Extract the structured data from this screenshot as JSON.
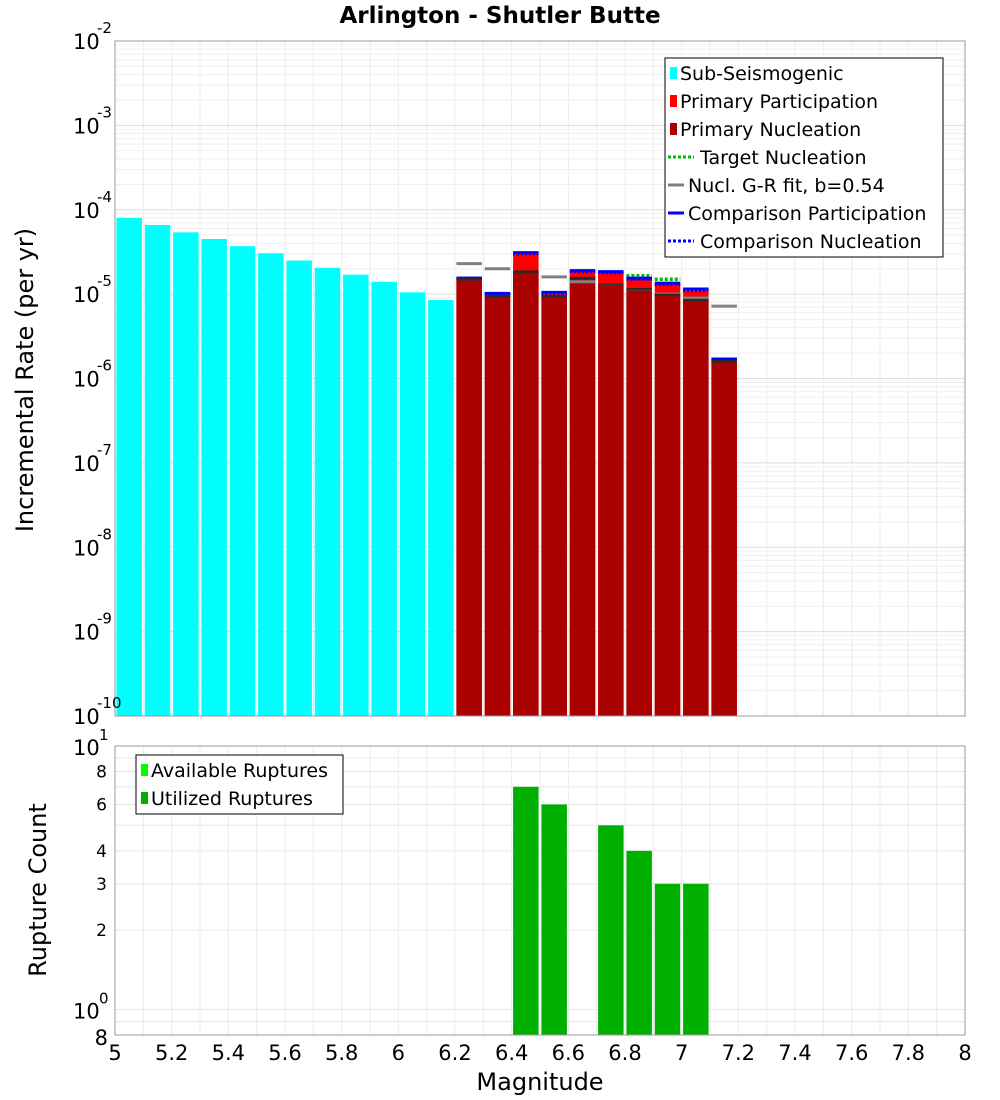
{
  "chart_data": [
    {
      "type": "bar",
      "title": "Arlington - Shutler Butte",
      "xlabel": "Magnitude",
      "ylabel": "Incremental Rate (per yr)",
      "yscale": "log",
      "xlim": [
        5,
        8
      ],
      "ylim": [
        1e-10,
        0.01
      ],
      "x_ticks": [
        "5",
        "5.2",
        "5.4",
        "5.6",
        "5.8",
        "6",
        "6.2",
        "6.4",
        "6.6",
        "6.8",
        "7",
        "7.2",
        "7.4",
        "7.6",
        "7.8",
        "8"
      ],
      "y_ticks": [
        {
          "base": "10",
          "exp": "-10"
        },
        {
          "base": "10",
          "exp": "-9"
        },
        {
          "base": "10",
          "exp": "-8"
        },
        {
          "base": "10",
          "exp": "-7"
        },
        {
          "base": "10",
          "exp": "-6"
        },
        {
          "base": "10",
          "exp": "-5"
        },
        {
          "base": "10",
          "exp": "-4"
        },
        {
          "base": "10",
          "exp": "-3"
        },
        {
          "base": "10",
          "exp": "-2"
        }
      ],
      "legend": {
        "position": "top-right",
        "entries": [
          {
            "label": "Sub-Seismogenic",
            "style": "bar",
            "color": "#00ffff"
          },
          {
            "label": "Primary Participation",
            "style": "bar",
            "color": "#ff0000"
          },
          {
            "label": "Primary Nucleation",
            "style": "bar",
            "color": "#aa0000"
          },
          {
            "label": "Target Nucleation",
            "style": "dotted",
            "color": "#00bb00"
          },
          {
            "label": "Nucl. G-R fit, b=0.54",
            "style": "line",
            "color": "#808080"
          },
          {
            "label": "Comparison Participation",
            "style": "line",
            "color": "#0000ff"
          },
          {
            "label": "Comparison Nucleation",
            "style": "dotted",
            "color": "#0000ff"
          }
        ]
      },
      "series": [
        {
          "name": "Sub-Seismogenic",
          "color": "#00ffff",
          "x": [
            5.05,
            5.15,
            5.25,
            5.35,
            5.45,
            5.55,
            5.65,
            5.75,
            5.85,
            5.95,
            6.05,
            6.15
          ],
          "values": [
            8e-05,
            6.6e-05,
            5.4e-05,
            4.5e-05,
            3.7e-05,
            3.05e-05,
            2.5e-05,
            2.05e-05,
            1.7e-05,
            1.4e-05,
            1.05e-05,
            8.5e-06
          ]
        },
        {
          "name": "Primary Participation",
          "color": "#ff0000",
          "x": [
            6.25,
            6.35,
            6.45,
            6.55,
            6.65,
            6.75,
            6.85,
            6.95,
            7.05,
            7.15
          ],
          "values": [
            1.5e-05,
            9.8e-06,
            3e-05,
            1e-05,
            1.85e-05,
            1.8e-05,
            1.5e-05,
            1.3e-05,
            1.1e-05,
            1.65e-06
          ]
        },
        {
          "name": "Primary Nucleation",
          "color": "#aa0000",
          "x": [
            6.25,
            6.35,
            6.45,
            6.55,
            6.65,
            6.75,
            6.85,
            6.95,
            7.05,
            7.15
          ],
          "values": [
            1.5e-05,
            9.5e-06,
            1.85e-05,
            9.5e-06,
            1.55e-05,
            1.3e-05,
            1.15e-05,
            9.8e-06,
            8.5e-06,
            1.6e-06
          ]
        },
        {
          "name": "Target Nucleation",
          "color": "#00bb00",
          "x": [
            6.85,
            6.95
          ],
          "values": [
            1.65e-05,
            1.5e-05
          ]
        },
        {
          "name": "Nucl. G-R fit, b=0.54",
          "color": "#808080",
          "x": [
            6.25,
            6.35,
            6.55,
            6.65,
            6.75,
            6.85,
            6.95,
            7.05,
            7.15
          ],
          "values": [
            2.3e-05,
            2e-05,
            1.6e-05,
            1.4e-05,
            1.3e-05,
            1.15e-05,
            1e-05,
            9e-06,
            7.2e-06
          ]
        },
        {
          "name": "Comparison Participation",
          "color": "#0000ff",
          "x": [
            6.25,
            6.35,
            6.45,
            6.55,
            6.65,
            6.75,
            6.85,
            6.95,
            7.05,
            7.15
          ],
          "values": [
            1.55e-05,
            1.02e-05,
            3.1e-05,
            1.05e-05,
            1.9e-05,
            1.85e-05,
            1.55e-05,
            1.35e-05,
            1.15e-05,
            1.7e-06
          ]
        },
        {
          "name": "Comparison Nucleation",
          "color": "#0000ff",
          "x": [
            6.25,
            6.35,
            6.45,
            6.55,
            6.65,
            6.75,
            6.85,
            6.95,
            7.05,
            7.15
          ],
          "values": [
            1.55e-05,
            1e-05,
            3e-05,
            1.02e-05,
            1.85e-05,
            1.8e-05,
            1.5e-05,
            1.3e-05,
            1.1e-05,
            1.65e-06
          ]
        }
      ]
    },
    {
      "type": "bar",
      "title": "",
      "xlabel": "Magnitude",
      "ylabel": "Rupture Count",
      "yscale": "log",
      "xlim": [
        5,
        8
      ],
      "ylim": [
        0.8,
        10
      ],
      "x_ticks": [
        "5",
        "5.2",
        "5.4",
        "5.6",
        "5.8",
        "6",
        "6.2",
        "6.4",
        "6.6",
        "6.8",
        "7",
        "7.2",
        "7.4",
        "7.6",
        "7.8",
        "8"
      ],
      "y_major_ticks": [
        {
          "value": 1,
          "base": "10",
          "exp": "0"
        },
        {
          "value": 10,
          "base": "10",
          "exp": "1"
        }
      ],
      "y_minor_ticks": [
        {
          "value": 0.8,
          "label": "8"
        },
        {
          "value": 2,
          "label": "2"
        },
        {
          "value": 3,
          "label": "3"
        },
        {
          "value": 4,
          "label": "4"
        },
        {
          "value": 6,
          "label": "6"
        },
        {
          "value": 8,
          "label": "8"
        }
      ],
      "legend": {
        "position": "top-left",
        "entries": [
          {
            "label": "Available Ruptures",
            "style": "bar",
            "color": "#00ff00"
          },
          {
            "label": "Utilized Ruptures",
            "style": "bar",
            "color": "#00b000"
          }
        ]
      },
      "series": [
        {
          "name": "Utilized Ruptures",
          "color": "#00b000",
          "x": [
            6.45,
            6.55,
            6.75,
            6.85,
            6.95,
            7.05
          ],
          "values": [
            7,
            6,
            5,
            4,
            3,
            3
          ]
        }
      ]
    }
  ]
}
